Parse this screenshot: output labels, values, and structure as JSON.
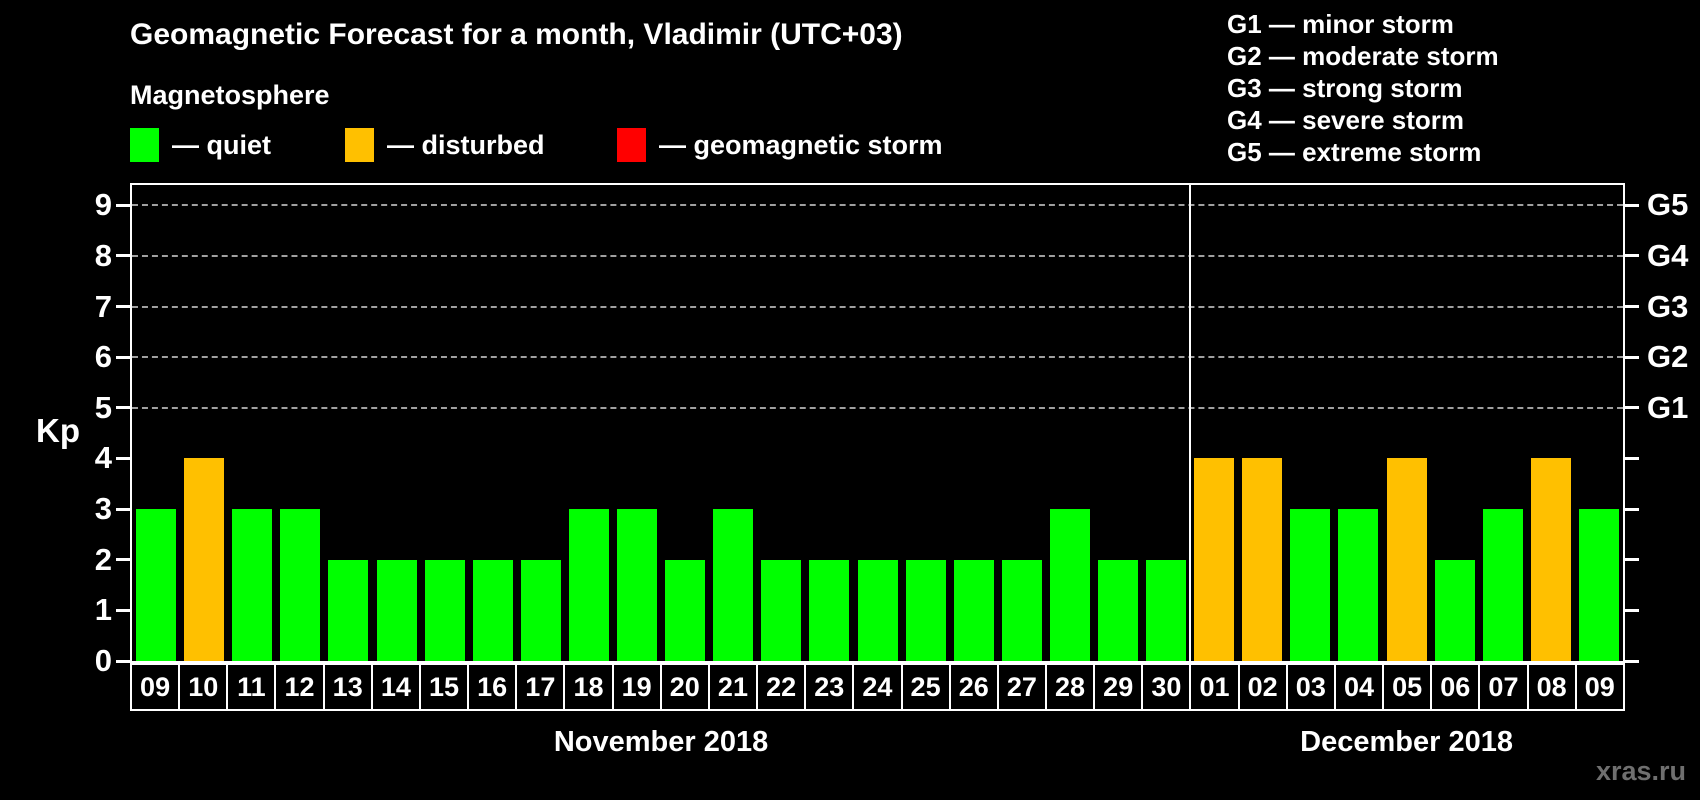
{
  "header": {
    "title": "Geomagnetic Forecast for a month, Vladimir (UTC+03)",
    "subtitle": "Magnetosphere"
  },
  "legend": {
    "items": [
      {
        "key": "quiet",
        "label": "— quiet",
        "color": "#00ff00"
      },
      {
        "key": "disturbed",
        "label": "— disturbed",
        "color": "#ffc000"
      },
      {
        "key": "storm",
        "label": "— geomagnetic storm",
        "color": "#ff0000"
      }
    ]
  },
  "g_legend": {
    "lines": [
      "G1 — minor storm",
      "G2 — moderate storm",
      "G3 — strong storm",
      "G4 — severe storm",
      "G5 — extreme storm"
    ]
  },
  "watermark": "xras.ru",
  "chart_data": {
    "type": "bar",
    "title": "Geomagnetic Forecast for a month, Vladimir (UTC+03)",
    "ylabel": "Kp",
    "ylim": [
      0,
      9.4
    ],
    "yticks": [
      0,
      1,
      2,
      3,
      4,
      5,
      6,
      7,
      8,
      9
    ],
    "gridlines_at": [
      5,
      6,
      7,
      8,
      9
    ],
    "grid": "horizontal dashed lines only at Kp 5-9",
    "legend_position": "top-left",
    "right_axis": [
      {
        "kp": 5,
        "label": "G1"
      },
      {
        "kp": 6,
        "label": "G2"
      },
      {
        "kp": 7,
        "label": "G3"
      },
      {
        "kp": 8,
        "label": "G4"
      },
      {
        "kp": 9,
        "label": "G5"
      }
    ],
    "state_colors": {
      "quiet": "#00ff00",
      "disturbed": "#ffc000",
      "storm": "#ff0000"
    },
    "axis_color": "#ffffff",
    "background_color": "#000000",
    "gridline_color": "#a0a0a0",
    "months": [
      {
        "label": "November 2018",
        "bars": [
          {
            "day": "09",
            "kp": 3,
            "state": "quiet"
          },
          {
            "day": "10",
            "kp": 4,
            "state": "disturbed"
          },
          {
            "day": "11",
            "kp": 3,
            "state": "quiet"
          },
          {
            "day": "12",
            "kp": 3,
            "state": "quiet"
          },
          {
            "day": "13",
            "kp": 2,
            "state": "quiet"
          },
          {
            "day": "14",
            "kp": 2,
            "state": "quiet"
          },
          {
            "day": "15",
            "kp": 2,
            "state": "quiet"
          },
          {
            "day": "16",
            "kp": 2,
            "state": "quiet"
          },
          {
            "day": "17",
            "kp": 2,
            "state": "quiet"
          },
          {
            "day": "18",
            "kp": 3,
            "state": "quiet"
          },
          {
            "day": "19",
            "kp": 3,
            "state": "quiet"
          },
          {
            "day": "20",
            "kp": 2,
            "state": "quiet"
          },
          {
            "day": "21",
            "kp": 3,
            "state": "quiet"
          },
          {
            "day": "22",
            "kp": 2,
            "state": "quiet"
          },
          {
            "day": "23",
            "kp": 2,
            "state": "quiet"
          },
          {
            "day": "24",
            "kp": 2,
            "state": "quiet"
          },
          {
            "day": "25",
            "kp": 2,
            "state": "quiet"
          },
          {
            "day": "26",
            "kp": 2,
            "state": "quiet"
          },
          {
            "day": "27",
            "kp": 2,
            "state": "quiet"
          },
          {
            "day": "28",
            "kp": 3,
            "state": "quiet"
          },
          {
            "day": "29",
            "kp": 2,
            "state": "quiet"
          },
          {
            "day": "30",
            "kp": 2,
            "state": "quiet"
          }
        ]
      },
      {
        "label": "December 2018",
        "bars": [
          {
            "day": "01",
            "kp": 4,
            "state": "disturbed"
          },
          {
            "day": "02",
            "kp": 4,
            "state": "disturbed"
          },
          {
            "day": "03",
            "kp": 3,
            "state": "quiet"
          },
          {
            "day": "04",
            "kp": 3,
            "state": "quiet"
          },
          {
            "day": "05",
            "kp": 4,
            "state": "disturbed"
          },
          {
            "day": "06",
            "kp": 2,
            "state": "quiet"
          },
          {
            "day": "07",
            "kp": 3,
            "state": "quiet"
          },
          {
            "day": "08",
            "kp": 4,
            "state": "disturbed"
          },
          {
            "day": "09",
            "kp": 3,
            "state": "quiet"
          }
        ]
      }
    ]
  }
}
